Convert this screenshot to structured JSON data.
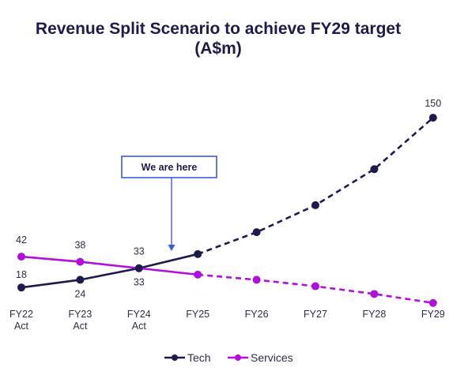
{
  "chart_data": {
    "type": "line",
    "title_line1": "Revenue Split Scenario to achieve FY29 target",
    "title_line2": "(A$m)",
    "categories": [
      [
        "FY22",
        "Act"
      ],
      [
        "FY23",
        "Act"
      ],
      [
        "FY24",
        "Act"
      ],
      [
        "FY25"
      ],
      [
        "FY26"
      ],
      [
        "FY27"
      ],
      [
        "FY28"
      ],
      [
        "FY29"
      ]
    ],
    "actual_until_index": 3,
    "series": [
      {
        "name": "Tech",
        "color": "#1d1a4e",
        "values": [
          18,
          24,
          33,
          44,
          61,
          82,
          110,
          150
        ],
        "labels": [
          "18",
          "24",
          "33",
          null,
          null,
          null,
          null,
          "150"
        ]
      },
      {
        "name": "Services",
        "color": "#b10fdc",
        "values": [
          42,
          38,
          33,
          28,
          24,
          19,
          13,
          6
        ],
        "labels": [
          "42",
          "38",
          "33",
          null,
          null,
          null,
          null,
          null
        ]
      }
    ],
    "annotation": {
      "text": "We are here",
      "category_index": 3,
      "color": "#3d5ad8"
    },
    "ylim": [
      0,
      160
    ],
    "grid": false,
    "legend": "bottom-center"
  }
}
